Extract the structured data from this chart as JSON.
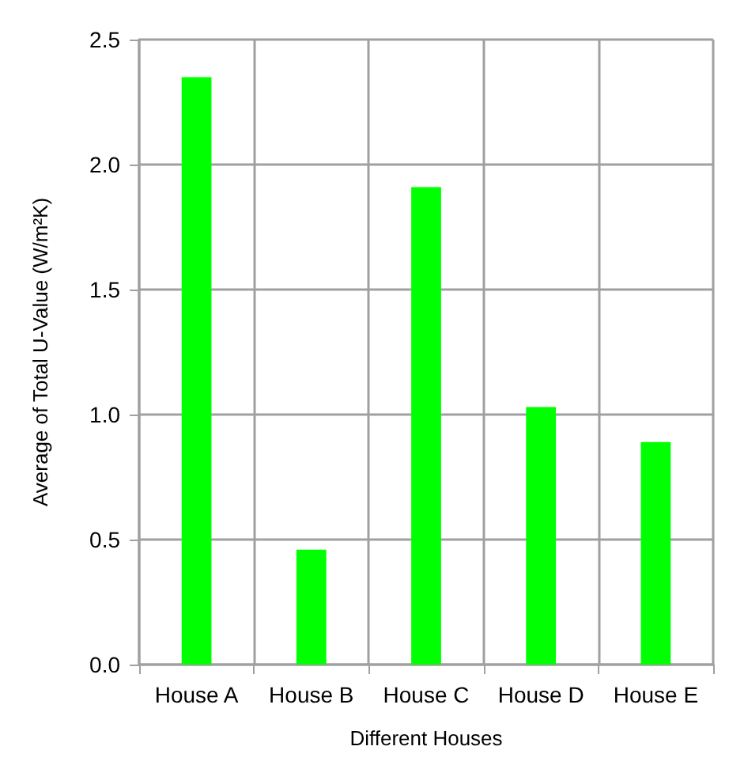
{
  "chart_data": {
    "type": "bar",
    "xlabel": "Different Houses",
    "ylabel": "Average of Total U-Value (W/m²K)",
    "categories": [
      "House A",
      "House B",
      "House C",
      "House D",
      "House E"
    ],
    "values": [
      2.35,
      0.46,
      1.91,
      1.03,
      0.89
    ],
    "color": "#00ff00",
    "ylim": [
      0,
      2.5
    ],
    "yticks": [
      {
        "value": 0,
        "label": "0.0"
      },
      0.5,
      {
        "value": 1,
        "label": "1.0"
      },
      1.5,
      {
        "value": 2,
        "label": "2.0"
      },
      2.5
    ],
    "grid": true
  }
}
